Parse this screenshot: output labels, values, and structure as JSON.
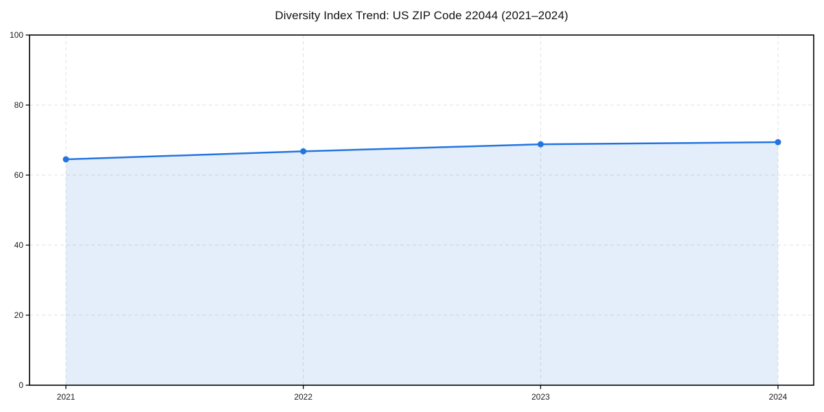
{
  "page": {
    "background": "#ffffff"
  },
  "chart_data": {
    "type": "area",
    "title": "Diversity Index Trend: US ZIP Code 22044 (2021–2024)",
    "categories": [
      "2021",
      "2022",
      "2023",
      "2024"
    ],
    "values": [
      64.5,
      66.8,
      68.8,
      69.4
    ],
    "xlabel": "",
    "ylabel": "",
    "ylim": [
      0,
      100
    ],
    "yticks": [
      0,
      20,
      40,
      60,
      80,
      100
    ],
    "grid": true,
    "grid_style": "dashed",
    "legend": "none",
    "marker": "circle",
    "colors": {
      "line": "#2274e0",
      "marker": "#2274e0",
      "fill": "rgba(34,116,224,0.12)",
      "grid": "#e0e0e0",
      "axis": "#000000",
      "tick_text": "#1a1a1a"
    }
  }
}
